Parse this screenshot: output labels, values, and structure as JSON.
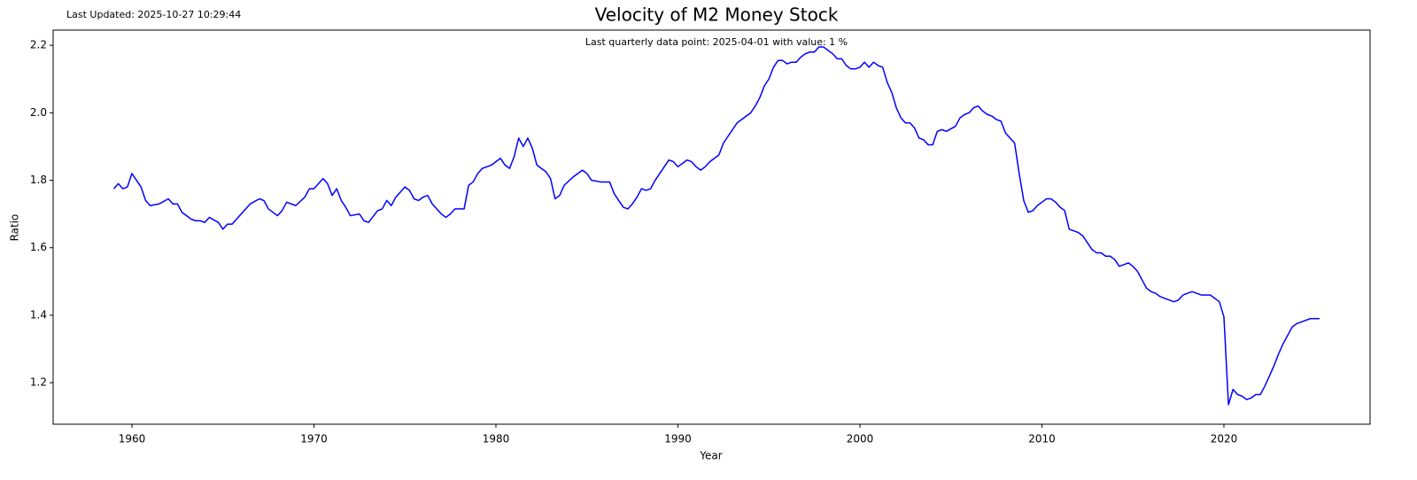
{
  "chart_data": {
    "type": "line",
    "title": "Velocity of M2 Money Stock",
    "subtitle": "Last Updated: 2025-10-27 10:29:44",
    "annotation": "Last quarterly data point: 2025-04-01 with value: 1 %",
    "x_label": "Year",
    "y_label": "Ratio",
    "xlim": [
      1955.67,
      2028.03
    ],
    "ylim": [
      1.077,
      2.245
    ],
    "xticks": [
      1960,
      1970,
      1980,
      1990,
      2000,
      2010,
      2020
    ],
    "yticks": [
      1.2,
      1.4,
      1.6,
      1.8,
      {
        "value": 2,
        "label": "2.0"
      },
      2.2
    ],
    "grid": false,
    "x": [
      1959,
      1959.25,
      1959.5,
      1959.75,
      1960,
      1960.5,
      1960.75,
      1961,
      1961.5,
      1962,
      1962.25,
      1962.5,
      1962.75,
      1963.25,
      1963.5,
      1963.75,
      1964,
      1964.25,
      1964.75,
      1965,
      1965.25,
      1965.5,
      1966,
      1966.5,
      1967,
      1967.25,
      1967.5,
      1968,
      1968.25,
      1968.5,
      1969,
      1969.5,
      1969.75,
      1970,
      1970.25,
      1970.5,
      1970.75,
      1971,
      1971.25,
      1971.5,
      1971.75,
      1972,
      1972.5,
      1972.75,
      1973,
      1973.5,
      1973.75,
      1974,
      1974.25,
      1974.5,
      1975,
      1975.25,
      1975.5,
      1975.75,
      1976,
      1976.25,
      1976.5,
      1977,
      1977.25,
      1977.5,
      1977.75,
      1978,
      1978.25,
      1978.5,
      1978.75,
      1979,
      1979.25,
      1979.75,
      1980.25,
      1980.5,
      1980.75,
      1981,
      1981.25,
      1981.5,
      1981.75,
      1982,
      1982.25,
      1982.5,
      1982.75,
      1983,
      1983.25,
      1983.5,
      1983.75,
      1984.25,
      1984.75,
      1985,
      1985.25,
      1985.75,
      1986.25,
      1986.5,
      1987,
      1987.25,
      1987.5,
      1987.75,
      1988,
      1988.25,
      1988.5,
      1988.75,
      1989.25,
      1989.5,
      1989.75,
      1990,
      1990.25,
      1990.5,
      1990.75,
      1991,
      1991.25,
      1991.5,
      1991.75,
      1992.25,
      1992.5,
      1992.75,
      1993.25,
      1993.75,
      1994,
      1994.25,
      1994.5,
      1994.75,
      1995,
      1995.25,
      1995.5,
      1995.75,
      1996,
      1996.25,
      1996.5,
      1996.75,
      1997,
      1997.25,
      1997.5,
      1997.75,
      1998,
      1998.25,
      1998.5,
      1998.75,
      1999,
      1999.25,
      1999.5,
      1999.75,
      2000,
      2000.25,
      2000.5,
      2000.75,
      2001,
      2001.25,
      2001.5,
      2001.75,
      2002,
      2002.25,
      2002.5,
      2002.75,
      2003,
      2003.25,
      2003.5,
      2003.75,
      2004,
      2004.25,
      2004.5,
      2004.75,
      2005.25,
      2005.5,
      2005.75,
      2006,
      2006.25,
      2006.5,
      2006.75,
      2007,
      2007.25,
      2007.5,
      2007.75,
      2008,
      2008.25,
      2008.5,
      2008.75,
      2009,
      2009.25,
      2009.5,
      2009.75,
      2010,
      2010.25,
      2010.5,
      2010.75,
      2011,
      2011.25,
      2011.5,
      2011.75,
      2012,
      2012.25,
      2012.5,
      2012.75,
      2013,
      2013.25,
      2013.5,
      2013.75,
      2014,
      2014.25,
      2014.5,
      2014.75,
      2015,
      2015.25,
      2015.5,
      2015.75,
      2016,
      2016.25,
      2016.5,
      2017,
      2017.25,
      2017.5,
      2017.75,
      2018,
      2018.25,
      2018.5,
      2018.75,
      2019,
      2019.25,
      2019.5,
      2019.75,
      2020,
      2020.25,
      2020.5,
      2020.75,
      2021,
      2021.25,
      2021.5,
      2021.75,
      2022,
      2022.25,
      2022.5,
      2022.75,
      2023,
      2023.25,
      2023.5,
      2023.75,
      2024,
      2024.25,
      2024.5,
      2024.75,
      2025,
      2025.25
    ],
    "series": [
      {
        "name": "Ratio",
        "color": "#0000ff",
        "values": [
          1.775,
          1.79,
          1.775,
          1.78,
          1.82,
          1.78,
          1.74,
          1.725,
          1.73,
          1.745,
          1.73,
          1.73,
          1.705,
          1.685,
          1.68,
          1.68,
          1.675,
          1.69,
          1.675,
          1.655,
          1.67,
          1.67,
          1.7,
          1.73,
          1.745,
          1.74,
          1.715,
          1.695,
          1.71,
          1.735,
          1.725,
          1.75,
          1.775,
          1.775,
          1.79,
          1.805,
          1.79,
          1.755,
          1.775,
          1.74,
          1.72,
          1.695,
          1.7,
          1.68,
          1.675,
          1.71,
          1.715,
          1.74,
          1.725,
          1.75,
          1.78,
          1.77,
          1.745,
          1.74,
          1.75,
          1.755,
          1.73,
          1.7,
          1.69,
          1.7,
          1.715,
          1.715,
          1.715,
          1.785,
          1.795,
          1.82,
          1.835,
          1.845,
          1.865,
          1.845,
          1.835,
          1.87,
          1.925,
          1.9,
          1.925,
          1.895,
          1.845,
          1.835,
          1.825,
          1.805,
          1.745,
          1.755,
          1.785,
          1.81,
          1.83,
          1.82,
          1.8,
          1.795,
          1.795,
          1.76,
          1.72,
          1.715,
          1.73,
          1.75,
          1.775,
          1.77,
          1.775,
          1.8,
          1.84,
          1.86,
          1.855,
          1.84,
          1.85,
          1.86,
          1.855,
          1.84,
          1.83,
          1.84,
          1.855,
          1.875,
          1.91,
          1.93,
          1.97,
          1.99,
          2.0,
          2.02,
          2.045,
          2.08,
          2.1,
          2.135,
          2.155,
          2.155,
          2.145,
          2.15,
          2.15,
          2.165,
          2.175,
          2.18,
          2.18,
          2.195,
          2.195,
          2.185,
          2.175,
          2.16,
          2.16,
          2.14,
          2.13,
          2.13,
          2.135,
          2.15,
          2.135,
          2.15,
          2.14,
          2.135,
          2.09,
          2.06,
          2.015,
          1.985,
          1.97,
          1.97,
          1.955,
          1.925,
          1.92,
          1.905,
          1.905,
          1.945,
          1.95,
          1.945,
          1.96,
          1.985,
          1.995,
          2.0,
          2.015,
          2.02,
          2.005,
          1.995,
          1.99,
          1.98,
          1.975,
          1.94,
          1.925,
          1.91,
          1.82,
          1.74,
          1.705,
          1.71,
          1.725,
          1.735,
          1.745,
          1.745,
          1.735,
          1.72,
          1.71,
          1.655,
          1.65,
          1.645,
          1.635,
          1.615,
          1.595,
          1.585,
          1.585,
          1.575,
          1.575,
          1.565,
          1.545,
          1.55,
          1.555,
          1.545,
          1.53,
          1.505,
          1.48,
          1.47,
          1.465,
          1.455,
          1.445,
          1.44,
          1.445,
          1.46,
          1.465,
          1.47,
          1.465,
          1.46,
          1.46,
          1.46,
          1.45,
          1.44,
          1.395,
          1.135,
          1.18,
          1.165,
          1.16,
          1.15,
          1.155,
          1.165,
          1.165,
          1.19,
          1.22,
          1.25,
          1.285,
          1.315,
          1.34,
          1.365,
          1.375,
          1.38,
          1.385,
          1.39,
          1.39,
          1.39
        ]
      }
    ]
  }
}
